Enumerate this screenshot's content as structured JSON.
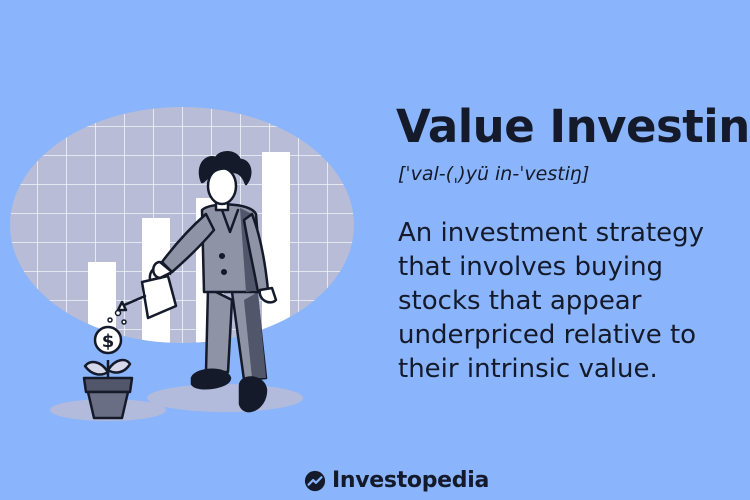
{
  "term": {
    "title": "Value Investing",
    "pronunciation": "[ˈval-(ˌ)yü in-ˈvestiŋ]",
    "definition": "An investment strategy that involves buying stocks that appear underpriced relative to their intrinsic value."
  },
  "brand": {
    "name": "Investopedia",
    "logo_icon": "investopedia-logo-icon"
  },
  "illustration": {
    "coin_symbol": "$",
    "icons": [
      "woman-watering-icon",
      "watering-can-icon",
      "coin-plant-icon",
      "bar-chart-background"
    ]
  },
  "colors": {
    "background": "#8ab4fb",
    "text": "#141a2a",
    "oval": "#b8bcd6",
    "figure": "#8f93a6",
    "figure_dark": "#52566a"
  }
}
